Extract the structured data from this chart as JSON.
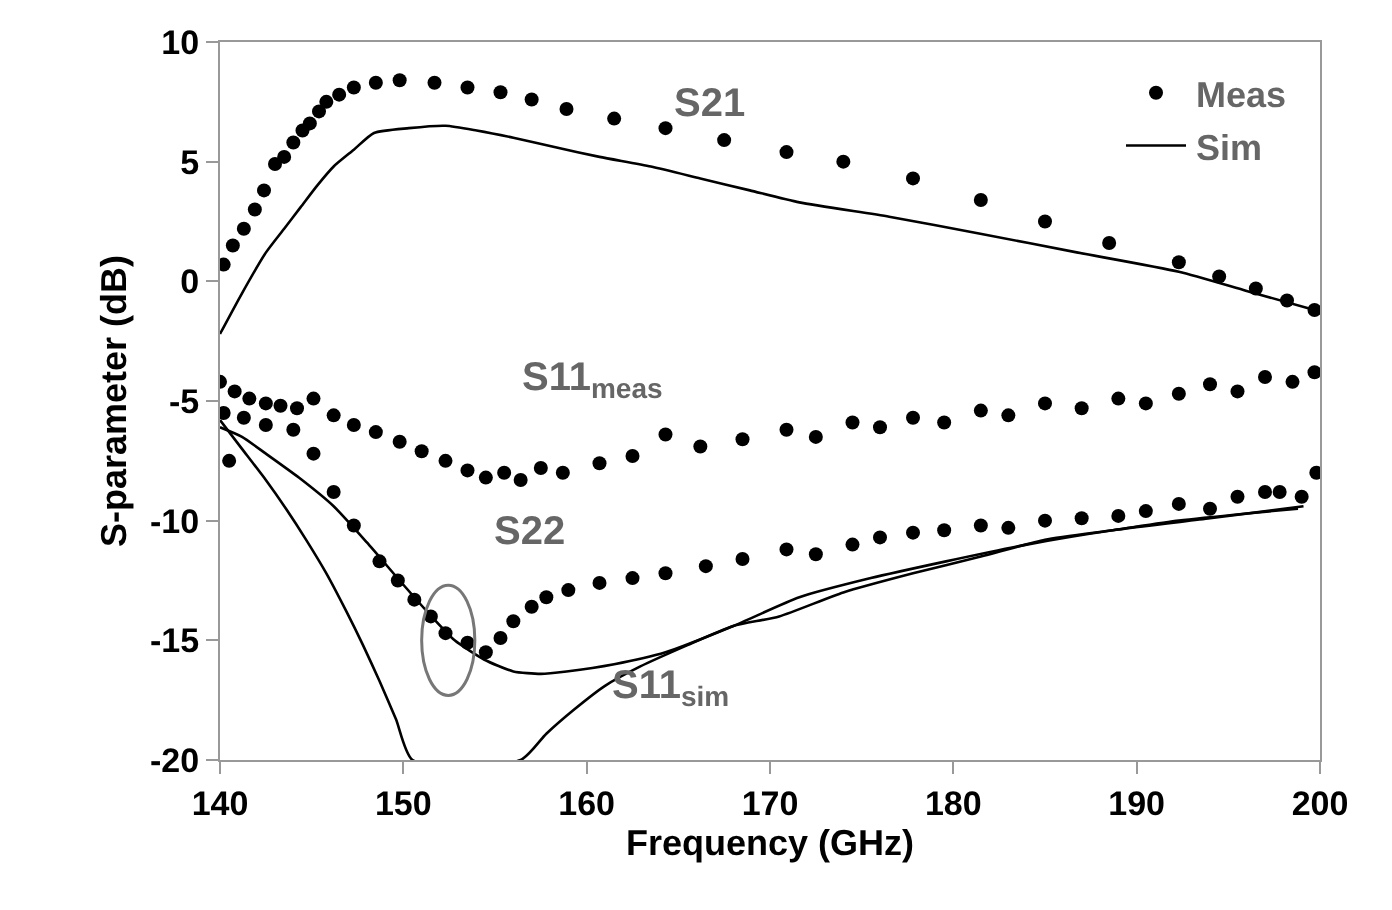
{
  "chart_data": {
    "type": "scatter",
    "xlabel": "Frequency (GHz)",
    "ylabel": "S-parameter (dB)",
    "xlim": [
      140,
      200
    ],
    "xticks": [
      140,
      150,
      160,
      170,
      180,
      190,
      200
    ],
    "ylim": [
      -20,
      10
    ],
    "yticks": [
      -20,
      -15,
      -10,
      -5,
      0,
      5,
      10
    ],
    "legend": "top right",
    "series": [
      {
        "name": "Meas",
        "marker": "circle",
        "color": "#000000",
        "x": [
          140.2,
          140.7,
          141.3,
          141.9,
          142.4,
          143,
          143.5,
          144,
          144.5,
          144.9,
          145.4,
          145.8,
          146.5,
          147.3,
          148.5,
          149.8,
          151.7,
          153.5,
          155.3,
          157,
          158.9,
          161.5,
          164.3,
          167.5,
          170.9,
          174,
          177.8,
          181.5,
          185,
          188.5,
          192.3,
          194.5,
          196.5,
          198.2,
          199.7
        ],
        "values": [
          0.7,
          1.5,
          2.2,
          3.0,
          3.8,
          4.9,
          5.2,
          5.8,
          6.3,
          6.6,
          7.1,
          7.5,
          7.8,
          8.1,
          8.3,
          8.4,
          8.3,
          8.1,
          7.9,
          7.6,
          7.2,
          6.8,
          6.4,
          5.9,
          5.4,
          5.0,
          4.3,
          3.4,
          2.5,
          1.6,
          0.8,
          0.2,
          -0.3,
          -0.8,
          -1.2
        ]
      },
      {
        "name": "Sim",
        "type": "line",
        "color": "#000000",
        "x": [
          140,
          141.2,
          142.5,
          143.5,
          144.4,
          145.3,
          146.2,
          147.3,
          148.4,
          150.3,
          152.3,
          154,
          156,
          158.3,
          160.7,
          163.5,
          166.2,
          168.9,
          171.6,
          176.5,
          181.4,
          186.8,
          192.3,
          196,
          199.7
        ],
        "values": [
          -2.2,
          -0.5,
          1.2,
          2.2,
          3.1,
          4.0,
          4.8,
          5.5,
          6.2,
          6.4,
          6.5,
          6.3,
          6.0,
          5.6,
          5.2,
          4.8,
          4.3,
          3.8,
          3.3,
          2.7,
          2.0,
          1.2,
          0.4,
          -0.4,
          -1.2
        ]
      },
      {
        "marker": "circle",
        "color": "#000000",
        "x": [
          140,
          140.8,
          141.6,
          142.5,
          143.3,
          144.2,
          145.1,
          146.2,
          147.3,
          148.5,
          149.8,
          151,
          152.3,
          153.5,
          154.5,
          155.5,
          156.4,
          157.5,
          158.7,
          160.7,
          162.5,
          164.3,
          166.2,
          168.5,
          170.9,
          172.5,
          174.5,
          176,
          177.8,
          179.5,
          181.5,
          183,
          185,
          187,
          189,
          190.5,
          192.3,
          194,
          195.5,
          197,
          198.5,
          199.7
        ],
        "values": [
          -4.2,
          -4.6,
          -4.9,
          -5.1,
          -5.2,
          -5.3,
          -4.9,
          -5.6,
          -6.0,
          -6.3,
          -6.7,
          -7.1,
          -7.5,
          -7.9,
          -8.2,
          -8.0,
          -8.3,
          -7.8,
          -8.0,
          -7.6,
          -7.3,
          -6.4,
          -6.9,
          -6.6,
          -6.2,
          -6.5,
          -5.9,
          -6.1,
          -5.7,
          -5.9,
          -5.4,
          -5.6,
          -5.1,
          -5.3,
          -4.9,
          -5.1,
          -4.7,
          -4.3,
          -4.6,
          -4.0,
          -4.2,
          -3.8
        ]
      },
      {
        "marker": "circle",
        "color": "#000000",
        "x": [
          140.2,
          140.5,
          141.3,
          142.5,
          144,
          145.1,
          146.2,
          147.3,
          148.7,
          149.7,
          150.6,
          151.5,
          152.3,
          153.5,
          154.5,
          155.3,
          156,
          157,
          157.8,
          159,
          160.7,
          162.5,
          164.3,
          166.5,
          168.5,
          170.9,
          172.5,
          174.5,
          176,
          177.8,
          179.5,
          181.5,
          183,
          185,
          187,
          189,
          190.5,
          192.3,
          194,
          195.5,
          197,
          197.8,
          199,
          199.8
        ],
        "values": [
          -5.5,
          -7.5,
          -5.7,
          -6.0,
          -6.2,
          -7.2,
          -8.8,
          -10.2,
          -11.7,
          -12.5,
          -13.3,
          -14.0,
          -14.7,
          -15.1,
          -15.5,
          -14.9,
          -14.2,
          -13.6,
          -13.2,
          -12.9,
          -12.6,
          -12.4,
          -12.2,
          -11.9,
          -11.6,
          -11.2,
          -11.4,
          -11.0,
          -10.7,
          -10.5,
          -10.4,
          -10.2,
          -10.3,
          -10.0,
          -9.9,
          -9.8,
          -9.6,
          -9.3,
          -9.5,
          -9.0,
          -8.8,
          -8.8,
          -9.0,
          -8.0
        ]
      },
      {
        "type": "line",
        "color": "#000000",
        "x": [
          140,
          141.2,
          142.5,
          144.3,
          146.2,
          148,
          149.8,
          151.3,
          152.8,
          154.4,
          156,
          157.5,
          158.9,
          161.5,
          164.3,
          168,
          171.6,
          175.5,
          179.6,
          184,
          188.7,
          194,
          199.1
        ],
        "values": [
          -6.1,
          -6.5,
          -7.2,
          -8.2,
          -9.4,
          -10.9,
          -12.5,
          -13.8,
          -15.0,
          -15.8,
          -16.3,
          -16.4,
          -16.3,
          -16.0,
          -15.5,
          -14.4,
          -13.2,
          -12.4,
          -11.7,
          -11.0,
          -10.4,
          -9.9,
          -9.4
        ]
      },
      {
        "type": "line",
        "color": "#000000",
        "x": [
          140,
          141.2,
          142.5,
          143.6,
          144.7,
          145.8,
          146.9,
          147.8,
          148.7,
          149.6,
          150.5,
          156.4,
          157.8,
          159.3,
          161,
          162.9,
          165.5,
          168,
          170.5,
          174,
          177.8,
          181.5,
          185,
          188.7,
          192.3,
          196,
          198.8
        ],
        "values": [
          -5.8,
          -7.0,
          -8.3,
          -9.5,
          -10.8,
          -12.2,
          -13.8,
          -15.2,
          -16.7,
          -18.3,
          -20,
          -20,
          -18.9,
          -17.9,
          -16.9,
          -16.1,
          -15.2,
          -14.4,
          -14.0,
          -13.0,
          -12.2,
          -11.5,
          -10.8,
          -10.4,
          -10.0,
          -9.7,
          -9.5
        ]
      }
    ],
    "annotations": [
      "S21",
      "S11$_{meas}$",
      "S22",
      "S11$_{sim}$"
    ]
  }
}
